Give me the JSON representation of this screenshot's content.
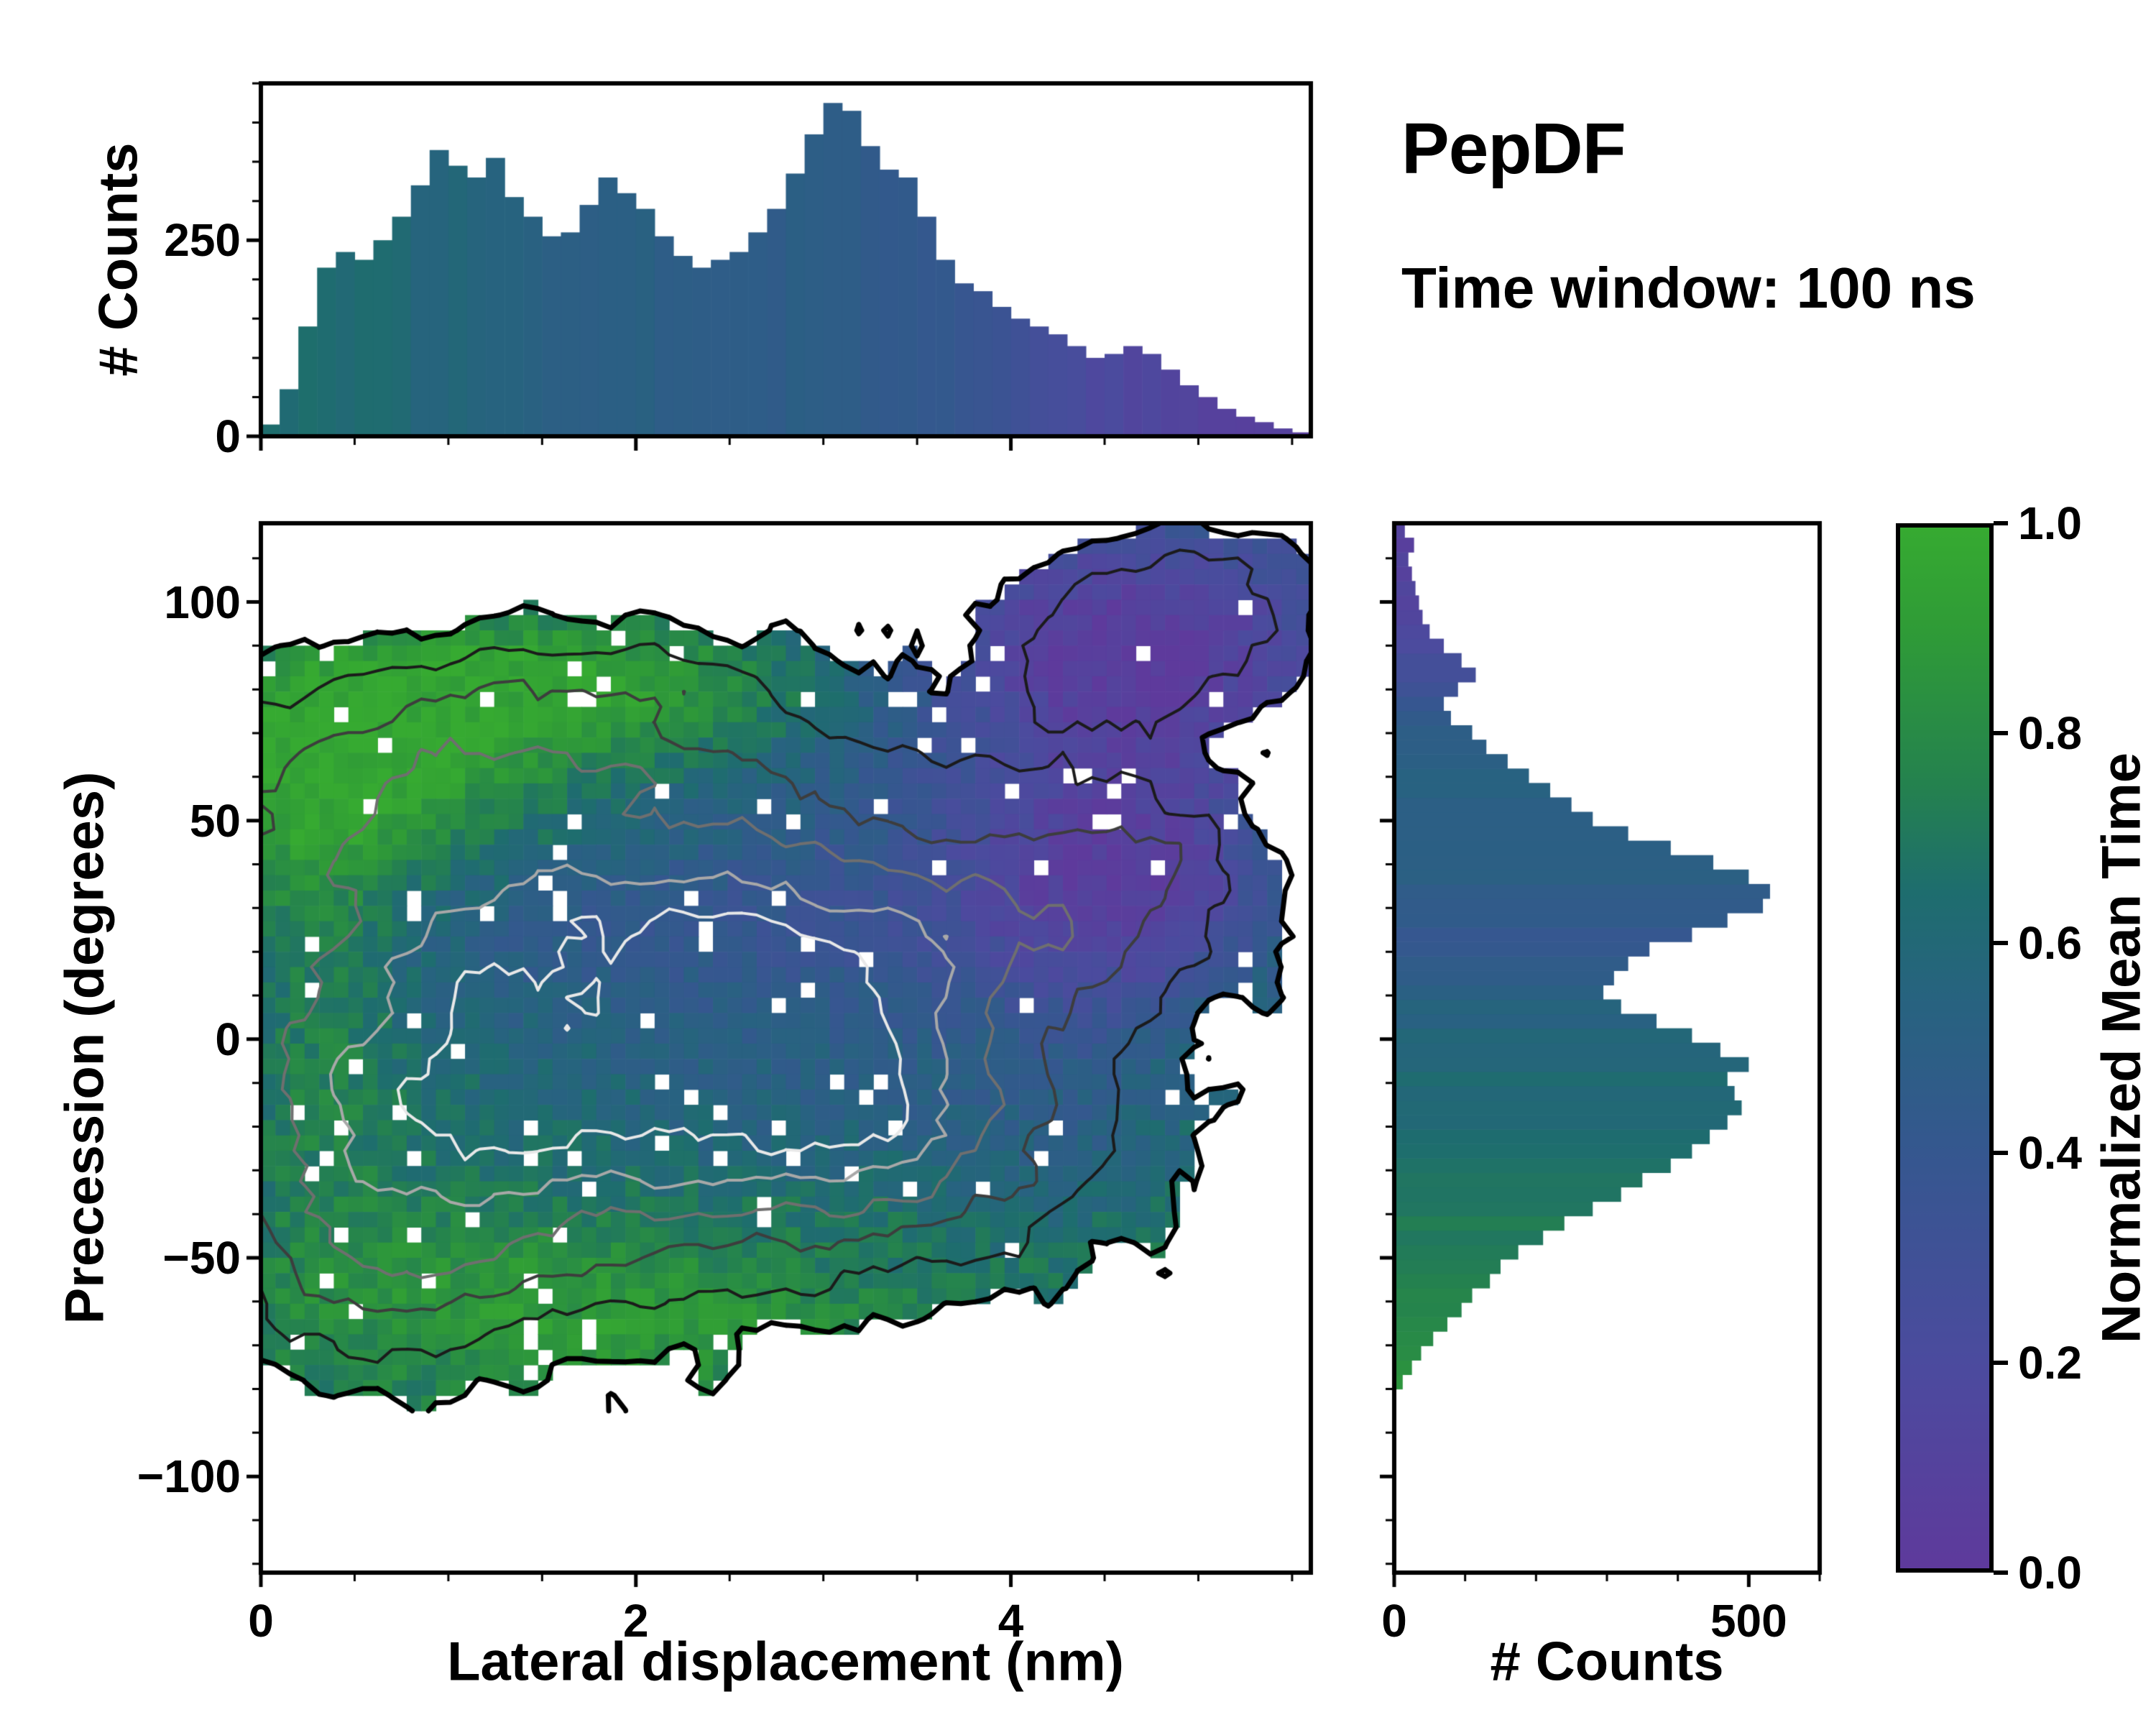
{
  "title": "PepDF",
  "subtitle": "Time window: 100 ns",
  "labels": {
    "x_main": "Lateral displacement (nm)",
    "y_main": "Precession (degrees)",
    "y_top": "# Counts",
    "x_right": "# Counts"
  },
  "colorbar": {
    "label": "Normalized Mean Time",
    "ticks": [
      {
        "v": 0.0,
        "label": "0.0"
      },
      {
        "v": 0.2,
        "label": "0.2"
      },
      {
        "v": 0.4,
        "label": "0.4"
      },
      {
        "v": 0.6,
        "label": "0.6"
      },
      {
        "v": 0.8,
        "label": "0.8"
      },
      {
        "v": 1.0,
        "label": "1.0"
      }
    ],
    "stops": [
      [
        0.0,
        "#5e3a9c"
      ],
      [
        0.2,
        "#4b4b9e"
      ],
      [
        0.4,
        "#35578f"
      ],
      [
        0.55,
        "#27637f"
      ],
      [
        0.65,
        "#1e6d6e"
      ],
      [
        0.75,
        "#24814f"
      ],
      [
        0.9,
        "#2f9b37"
      ],
      [
        1.0,
        "#36aa31"
      ]
    ]
  },
  "chart_data": [
    {
      "id": "top_histogram",
      "type": "bar",
      "ylabel": "# Counts",
      "xlim": [
        0,
        5.6
      ],
      "ylim": [
        0,
        450
      ],
      "yticks": [
        {
          "v": 0,
          "label": "0"
        },
        {
          "v": 250,
          "label": "250"
        }
      ],
      "xticks": [
        {
          "v": 0,
          "label": ""
        },
        {
          "v": 2,
          "label": ""
        },
        {
          "v": 4,
          "label": ""
        }
      ],
      "x_start": 0.0,
      "bin_width": 0.1,
      "values": [
        15,
        60,
        140,
        215,
        235,
        225,
        250,
        280,
        320,
        365,
        345,
        330,
        355,
        305,
        280,
        255,
        260,
        295,
        330,
        310,
        290,
        255,
        230,
        215,
        225,
        235,
        260,
        290,
        335,
        385,
        425,
        415,
        370,
        340,
        330,
        280,
        225,
        195,
        185,
        165,
        150,
        140,
        130,
        115,
        100,
        105,
        115,
        105,
        85,
        65,
        50,
        35,
        25,
        18,
        10,
        5
      ],
      "color_by": "normalized_mean_time",
      "mt_stops": [
        [
          0,
          0.66
        ],
        [
          0.6,
          0.62
        ],
        [
          1.2,
          0.55
        ],
        [
          2.0,
          0.5
        ],
        [
          3.0,
          0.48
        ],
        [
          3.6,
          0.42
        ],
        [
          4.1,
          0.3
        ],
        [
          4.5,
          0.18
        ],
        [
          5.0,
          0.1
        ],
        [
          5.6,
          0.06
        ]
      ]
    },
    {
      "id": "right_histogram",
      "type": "bar",
      "orientation": "horizontal",
      "xlabel": "# Counts",
      "xlim": [
        0,
        600
      ],
      "ylim": [
        -122,
        118
      ],
      "xticks": [
        {
          "v": 0,
          "label": "0"
        },
        {
          "v": 500,
          "label": "500"
        }
      ],
      "y_start": -80,
      "bin_width": 3.3,
      "values": [
        12,
        25,
        38,
        55,
        75,
        95,
        110,
        135,
        150,
        175,
        210,
        240,
        280,
        320,
        350,
        390,
        420,
        445,
        470,
        490,
        480,
        470,
        500,
        460,
        420,
        370,
        320,
        295,
        310,
        330,
        360,
        420,
        470,
        520,
        530,
        500,
        450,
        390,
        330,
        280,
        250,
        220,
        190,
        160,
        130,
        110,
        80,
        70,
        90,
        115,
        95,
        70,
        50,
        40,
        35,
        30,
        25,
        20,
        28,
        15
      ],
      "color_by": "normalized_mean_time",
      "mt_stops": [
        [
          -80,
          0.85
        ],
        [
          -60,
          0.78
        ],
        [
          -45,
          0.72
        ],
        [
          -30,
          0.67
        ],
        [
          -15,
          0.62
        ],
        [
          -5,
          0.6
        ],
        [
          5,
          0.55
        ],
        [
          15,
          0.47
        ],
        [
          22,
          0.38
        ],
        [
          30,
          0.45
        ],
        [
          40,
          0.5
        ],
        [
          55,
          0.52
        ],
        [
          70,
          0.5
        ],
        [
          80,
          0.3
        ],
        [
          90,
          0.2
        ],
        [
          100,
          0.12
        ],
        [
          118,
          0.08
        ]
      ]
    },
    {
      "id": "joint_heatmap",
      "type": "heatmap",
      "xlabel": "Lateral displacement (nm)",
      "ylabel": "Precession (degrees)",
      "value_label": "Normalized Mean Time",
      "xlim": [
        0,
        5.6
      ],
      "ylim": [
        -122,
        118
      ],
      "xticks": [
        {
          "v": 0,
          "label": "0"
        },
        {
          "v": 2,
          "label": "2"
        },
        {
          "v": 4,
          "label": "4"
        }
      ],
      "yticks": [
        {
          "v": -100,
          "label": "−100"
        },
        {
          "v": -50,
          "label": "−50"
        },
        {
          "v": 0,
          "label": "0"
        },
        {
          "v": 50,
          "label": "50"
        },
        {
          "v": 100,
          "label": "100"
        }
      ],
      "grid": {
        "nx": 72,
        "ny": 58,
        "x0": 0.0,
        "x1": 5.6,
        "y0": -85,
        "y1": 118
      },
      "density_gaussians": [
        [
          1.0,
          -15,
          0.95,
          30,
          1.0
        ],
        [
          3.05,
          -5,
          0.75,
          22,
          0.85
        ],
        [
          2.6,
          28,
          1.3,
          14,
          0.55
        ],
        [
          2.0,
          8,
          1.8,
          42,
          0.55
        ],
        [
          0.6,
          55,
          0.8,
          18,
          0.45
        ],
        [
          2.2,
          80,
          0.7,
          10,
          0.3
        ],
        [
          1.3,
          72,
          0.8,
          12,
          0.3
        ],
        [
          2.3,
          55,
          1.1,
          10,
          0.35
        ],
        [
          4.6,
          88,
          0.55,
          14,
          0.55
        ],
        [
          5.1,
          104,
          0.45,
          10,
          0.35
        ],
        [
          4.35,
          35,
          0.5,
          18,
          0.35
        ],
        [
          4.85,
          42,
          0.35,
          12,
          0.28
        ],
        [
          0.6,
          -55,
          0.55,
          14,
          0.35
        ],
        [
          3.3,
          -30,
          0.9,
          18,
          0.4
        ]
      ],
      "mean_time_base": 0.5,
      "mean_time_terms": [
        [
          0.5,
          62,
          0.9,
          22,
          0.4
        ],
        [
          1.8,
          82,
          1.1,
          13,
          0.38
        ],
        [
          4.6,
          90,
          0.9,
          20,
          -0.48
        ],
        [
          4.55,
          38,
          0.65,
          22,
          -0.42
        ],
        [
          2.6,
          27,
          1.6,
          13,
          -0.12
        ],
        [
          0.8,
          -35,
          1.1,
          28,
          0.16
        ],
        [
          1.6,
          -62,
          1.4,
          14,
          0.3
        ],
        [
          0.3,
          20,
          0.35,
          40,
          0.2
        ],
        [
          3.4,
          -42,
          1.0,
          12,
          0.12
        ]
      ],
      "edge_green": {
        "amp": 0.18,
        "scale": 0.45,
        "y_max": 55
      },
      "occupancy_threshold": 0.18,
      "hole_fraction": 0.035,
      "contour_levels": [
        0.18,
        0.4,
        0.65,
        0.9,
        1.15,
        1.35
      ],
      "contour_colors": [
        "#000000",
        "#1b1b1b",
        "#3d3d3d",
        "#6f6f6f",
        "#a8a8a8",
        "#e8e8e8"
      ],
      "contour_widths": [
        7,
        4,
        4,
        4,
        4,
        4
      ],
      "noise": {
        "seed": 1337,
        "field_amp": 0.1,
        "mt_amp": 0.16
      }
    }
  ]
}
